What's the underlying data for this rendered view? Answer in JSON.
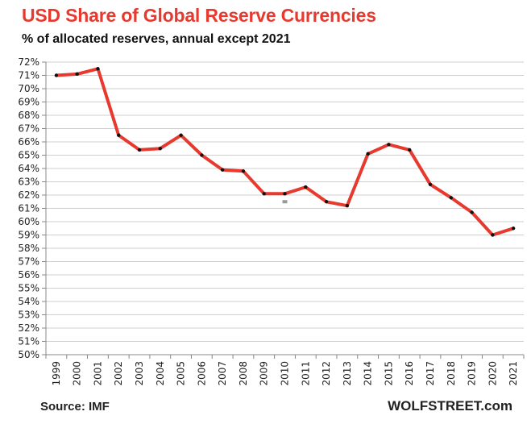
{
  "header": {
    "title": "USD Share of Global  Reserve Currencies",
    "subtitle": "% of allocated reserves, annual except 2021"
  },
  "footer": {
    "source": "Source: IMF",
    "brand": "WOLFSTREET.com"
  },
  "colors": {
    "title": "#e8392f",
    "line": "#e8392f",
    "marker": "#111111",
    "grid": "#cfcfcf",
    "axis": "#888888",
    "annotation": "#999999"
  },
  "chart_data": {
    "type": "line",
    "title": "USD Share of Global  Reserve Currencies",
    "subtitle": "% of allocated reserves, annual except 2021",
    "xlabel": "",
    "ylabel": "",
    "categories": [
      "1999",
      "2000",
      "2001",
      "2002",
      "2003",
      "2004",
      "2005",
      "2006",
      "2007",
      "2008",
      "2009",
      "2010",
      "2011",
      "2012",
      "2013",
      "2014",
      "2015",
      "2016",
      "2017",
      "2018",
      "2019",
      "2020",
      "2021"
    ],
    "series": [
      {
        "name": "USD share of allocated reserves (%)",
        "values": [
          71.0,
          71.1,
          71.5,
          66.5,
          65.4,
          65.5,
          66.5,
          65.0,
          63.9,
          63.8,
          62.1,
          62.1,
          62.6,
          61.5,
          61.2,
          65.1,
          65.8,
          65.4,
          62.8,
          61.8,
          60.7,
          59.0,
          59.5
        ]
      }
    ],
    "annotations": [
      {
        "label": "small gray marker",
        "x": "2010",
        "y": 61.5
      }
    ],
    "ylim": [
      50,
      72
    ],
    "yticks": [
      "50%",
      "51%",
      "52%",
      "53%",
      "54%",
      "55%",
      "56%",
      "57%",
      "58%",
      "59%",
      "60%",
      "61%",
      "62%",
      "63%",
      "64%",
      "65%",
      "66%",
      "67%",
      "68%",
      "69%",
      "70%",
      "71%",
      "72%"
    ],
    "grid": true,
    "legend": "none",
    "source": "Source: IMF",
    "brand": "WOLFSTREET.com"
  }
}
